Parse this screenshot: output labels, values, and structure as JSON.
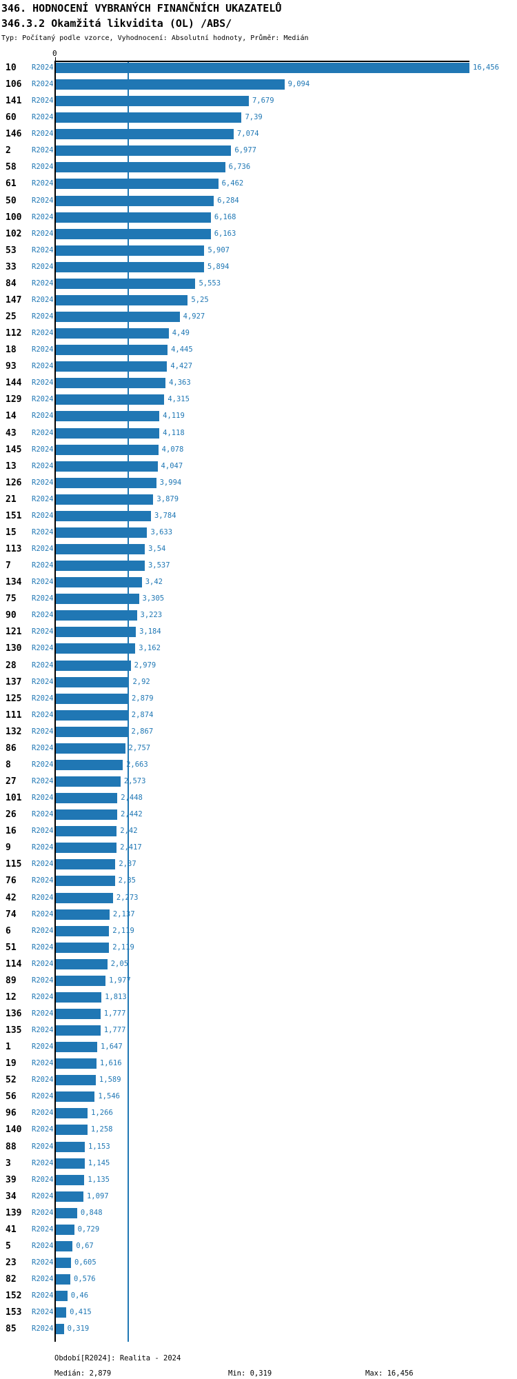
{
  "title": "346. HODNOCENÍ VYBRANÝCH FINANČNÍCH UKAZATELŮ",
  "subtitle": "346.3.2 Okamžitá likvidita (OL) /ABS/",
  "meta": "Typ: Počítaný podle vzorce, Vyhodnocení: Absolutní hodnoty, Průměr: Medián",
  "series_label": "R2024",
  "axis": {
    "zero_label": "0"
  },
  "footer": {
    "period": "Období[R2024]: Realita - 2024",
    "median": "Medián: 2,879",
    "min": "Min: 0,319",
    "max": "Max: 16,456"
  },
  "colors": {
    "bar": "#2077b4",
    "accent_text": "#1f77b4",
    "median_line": "#1f77b4",
    "axis": "#000000"
  },
  "chart_data": {
    "type": "bar",
    "orientation": "horizontal",
    "title": "346.3.2 Okamžitá likvidita (OL) /ABS/",
    "series_name": "R2024",
    "xlim": [
      0,
      16.456
    ],
    "median": 2.879,
    "min": 0.319,
    "max": 16.456,
    "grid": false,
    "categories": [
      "10",
      "106",
      "141",
      "60",
      "146",
      "2",
      "58",
      "61",
      "50",
      "100",
      "102",
      "53",
      "33",
      "84",
      "147",
      "25",
      "112",
      "18",
      "93",
      "144",
      "129",
      "14",
      "43",
      "145",
      "13",
      "126",
      "21",
      "151",
      "15",
      "113",
      "7",
      "134",
      "75",
      "90",
      "121",
      "130",
      "28",
      "137",
      "125",
      "111",
      "132",
      "86",
      "8",
      "27",
      "101",
      "26",
      "16",
      "9",
      "115",
      "76",
      "42",
      "74",
      "6",
      "51",
      "114",
      "89",
      "12",
      "136",
      "135",
      "1",
      "19",
      "52",
      "56",
      "96",
      "140",
      "88",
      "3",
      "39",
      "34",
      "139",
      "41",
      "5",
      "23",
      "82",
      "152",
      "153",
      "85"
    ],
    "values": [
      16.456,
      9.094,
      7.679,
      7.39,
      7.074,
      6.977,
      6.736,
      6.462,
      6.284,
      6.168,
      6.163,
      5.907,
      5.894,
      5.553,
      5.25,
      4.927,
      4.49,
      4.445,
      4.427,
      4.363,
      4.315,
      4.119,
      4.118,
      4.078,
      4.047,
      3.994,
      3.879,
      3.784,
      3.633,
      3.54,
      3.537,
      3.42,
      3.305,
      3.223,
      3.184,
      3.162,
      2.979,
      2.92,
      2.879,
      2.874,
      2.867,
      2.757,
      2.663,
      2.573,
      2.448,
      2.442,
      2.42,
      2.417,
      2.37,
      2.35,
      2.273,
      2.137,
      2.119,
      2.119,
      2.05,
      1.977,
      1.813,
      1.777,
      1.777,
      1.647,
      1.616,
      1.589,
      1.546,
      1.266,
      1.258,
      1.153,
      1.145,
      1.135,
      1.097,
      0.848,
      0.729,
      0.67,
      0.605,
      0.576,
      0.46,
      0.415,
      0.319
    ],
    "value_labels": [
      "16,456",
      "9,094",
      "7,679",
      "7,39",
      "7,074",
      "6,977",
      "6,736",
      "6,462",
      "6,284",
      "6,168",
      "6,163",
      "5,907",
      "5,894",
      "5,553",
      "5,25",
      "4,927",
      "4,49",
      "4,445",
      "4,427",
      "4,363",
      "4,315",
      "4,119",
      "4,118",
      "4,078",
      "4,047",
      "3,994",
      "3,879",
      "3,784",
      "3,633",
      "3,54",
      "3,537",
      "3,42",
      "3,305",
      "3,223",
      "3,184",
      "3,162",
      "2,979",
      "2,92",
      "2,879",
      "2,874",
      "2,867",
      "2,757",
      "2,663",
      "2,573",
      "2,448",
      "2,442",
      "2,42",
      "2,417",
      "2,37",
      "2,35",
      "2,273",
      "2,137",
      "2,119",
      "2,119",
      "2,05",
      "1,977",
      "1,813",
      "1,777",
      "1,777",
      "1,647",
      "1,616",
      "1,589",
      "1,546",
      "1,266",
      "1,258",
      "1,153",
      "1,145",
      "1,135",
      "1,097",
      "0,848",
      "0,729",
      "0,67",
      "0,605",
      "0,576",
      "0,46",
      "0,415",
      "0,319"
    ]
  }
}
